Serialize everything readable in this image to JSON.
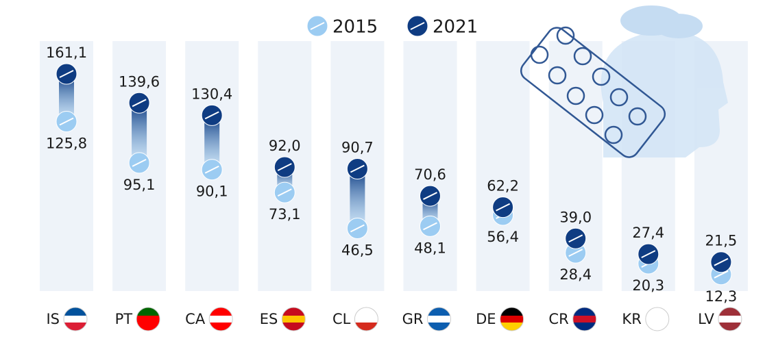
{
  "chart_data": {
    "type": "dumbbell",
    "categories": [
      "IS",
      "PT",
      "CA",
      "ES",
      "CL",
      "GR",
      "DE",
      "CR",
      "KR",
      "LV"
    ],
    "series": [
      {
        "name": "2015",
        "color": "#9cccf2",
        "values": [
          125.8,
          95.1,
          90.1,
          73.1,
          46.5,
          48.1,
          56.4,
          28.4,
          20.3,
          12.3
        ],
        "value_labels": [
          "125,8",
          "95,1",
          "90,1",
          "73,1",
          "46,5",
          "48,1",
          "56,4",
          "28,4",
          "20,3",
          "12,3"
        ]
      },
      {
        "name": "2021",
        "color": "#0f3c82",
        "values": [
          161.1,
          139.6,
          130.4,
          92.0,
          90.7,
          70.6,
          62.2,
          39.0,
          27.4,
          21.5
        ],
        "value_labels": [
          "161,1",
          "139,6",
          "130,4",
          "92,0",
          "90,7",
          "70,6",
          "62,2",
          "39,0",
          "27,4",
          "21,5"
        ]
      }
    ]
  }
}
